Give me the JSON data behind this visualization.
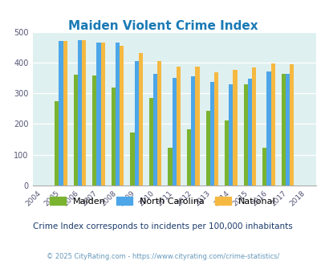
{
  "title": "Maiden Violent Crime Index",
  "years": [
    "2004",
    "2005",
    "2006",
    "2007",
    "2008",
    "2009",
    "2010",
    "2011",
    "2012",
    "2013",
    "2014",
    "2015",
    "2016",
    "2017",
    "2018"
  ],
  "maiden": [
    null,
    275,
    360,
    357,
    318,
    173,
    285,
    122,
    184,
    242,
    211,
    329,
    122,
    362,
    null
  ],
  "north_carolina": [
    null,
    469,
    474,
    465,
    466,
    405,
    363,
    350,
    354,
    337,
    328,
    347,
    372,
    362,
    null
  ],
  "national": [
    null,
    469,
    474,
    465,
    454,
    432,
    406,
    387,
    387,
    368,
    376,
    383,
    397,
    394,
    null
  ],
  "maiden_color": "#7ab330",
  "nc_color": "#4da6e8",
  "national_color": "#f5b942",
  "bg_color": "#dff0f0",
  "title_color": "#1a7ab5",
  "subtitle": "Crime Index corresponds to incidents per 100,000 inhabitants",
  "subtitle_color": "#1a3a6b",
  "footer": "© 2025 CityRating.com - https://www.cityrating.com/crime-statistics/",
  "footer_color": "#6699bb",
  "ylim": [
    0,
    500
  ],
  "yticks": [
    0,
    100,
    200,
    300,
    400,
    500
  ]
}
